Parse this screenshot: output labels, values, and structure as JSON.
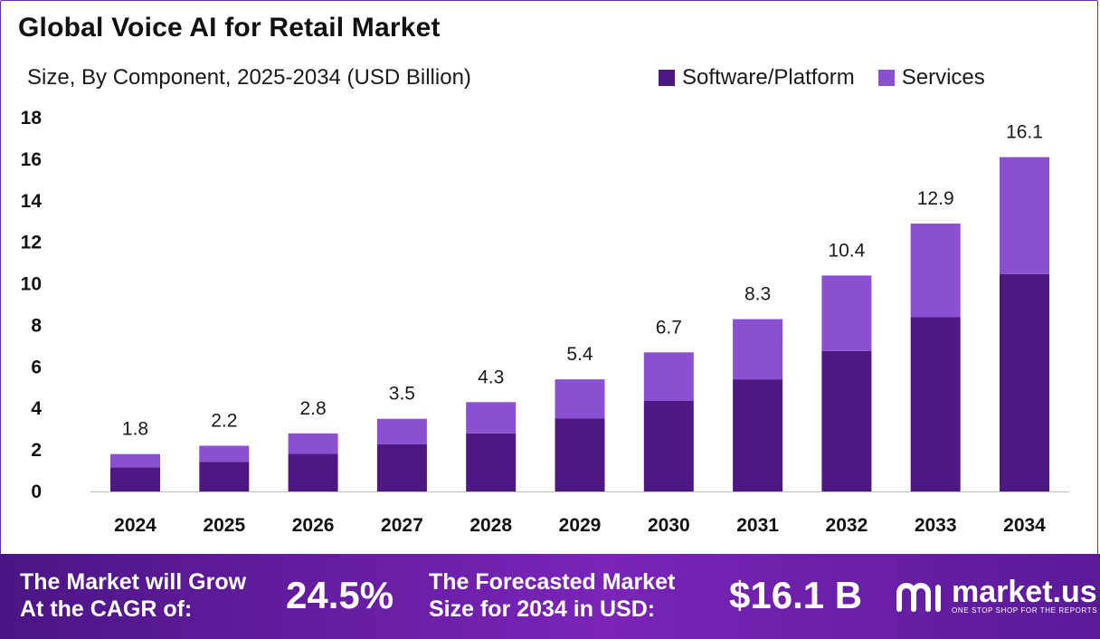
{
  "title": "Global Voice AI for Retail Market",
  "subtitle": "Size, By Component, 2025-2034 (USD Billion)",
  "legend": [
    {
      "label": "Software/Platform",
      "color": "#4f1782"
    },
    {
      "label": "Services",
      "color": "#8b4fd1"
    }
  ],
  "chart_data": {
    "type": "bar",
    "stacked": true,
    "categories": [
      "2024",
      "2025",
      "2026",
      "2027",
      "2028",
      "2029",
      "2030",
      "2031",
      "2032",
      "2033",
      "2034"
    ],
    "series": [
      {
        "name": "Software/Platform",
        "color": "#4f1782",
        "values": [
          1.16,
          1.43,
          1.82,
          2.28,
          2.8,
          3.51,
          4.36,
          5.4,
          6.76,
          8.39,
          10.47
        ]
      },
      {
        "name": "Services",
        "color": "#8b4fd1",
        "values": [
          0.64,
          0.77,
          0.98,
          1.22,
          1.5,
          1.89,
          2.34,
          2.9,
          3.64,
          4.51,
          5.63
        ]
      }
    ],
    "totals_labels": [
      "1.8",
      "2.2",
      "2.8",
      "3.5",
      "4.3",
      "5.4",
      "6.7",
      "8.3",
      "10.4",
      "12.9",
      "16.1"
    ],
    "y_ticks": [
      "0",
      "2",
      "4",
      "6",
      "8",
      "10",
      "12",
      "14",
      "16",
      "18"
    ],
    "ylim": [
      0,
      18
    ],
    "grid": false,
    "legend_position": "top-right"
  },
  "footer": {
    "cagr_text_line1": "The Market will Grow",
    "cagr_text_line2": "At the CAGR of:",
    "cagr_value": "24.5%",
    "forecast_text_line1": "The Forecasted Market",
    "forecast_text_line2": "Size for 2034 in USD:",
    "forecast_value": "$16.1 B",
    "logo_name": "market.us",
    "logo_tagline": "ONE STOP SHOP FOR THE REPORTS"
  }
}
